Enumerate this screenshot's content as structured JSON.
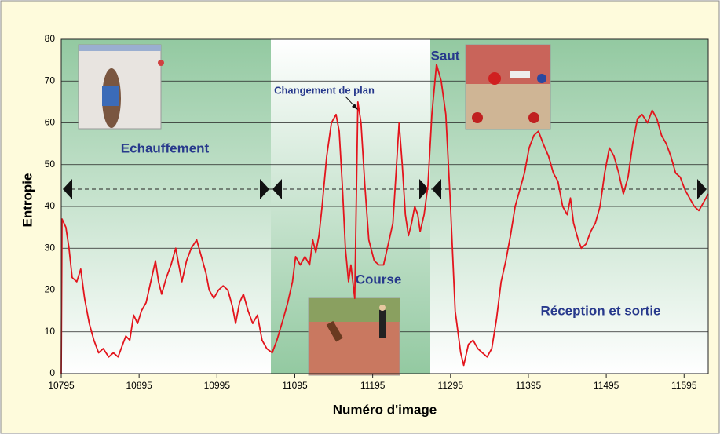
{
  "chart_data": {
    "type": "line",
    "xlabel": "Numéro d'image",
    "ylabel": "Entropie",
    "annotations": [
      "Echauffement",
      "Saut",
      "Changement de plan",
      "Course",
      "Réception et sortie"
    ],
    "xlim": [
      10795,
      11626
    ],
    "ylim": [
      0,
      80
    ],
    "xticks": [
      10795,
      10895,
      10995,
      11095,
      11195,
      11295,
      11395,
      11495,
      11595
    ],
    "yticks": [
      0,
      10,
      20,
      30,
      40,
      50,
      60,
      70,
      80
    ],
    "grid": true,
    "series": [
      {
        "color": "#e3141c",
        "x": [
          10795,
          10796,
          10801,
          10805,
          10809,
          10815,
          10820,
          10825,
          10831,
          10837,
          10843,
          10849,
          10856,
          10862,
          10868,
          10874,
          10878,
          10883,
          10888,
          10893,
          10898,
          10904,
          10910,
          10916,
          10920,
          10924,
          10930,
          10936,
          10942,
          10946,
          10950,
          10956,
          10962,
          10969,
          10975,
          10981,
          10985,
          10991,
          10997,
          11003,
          11009,
          11015,
          11019,
          11024,
          11029,
          11035,
          11041,
          11047,
          11053,
          11059,
          11066,
          11072,
          11080,
          11086,
          11092,
          11096,
          11102,
          11108,
          11114,
          11118,
          11122,
          11126,
          11130,
          11136,
          11142,
          11148,
          11152,
          11156,
          11160,
          11164,
          11167,
          11172,
          11176,
          11180,
          11185,
          11190,
          11197,
          11203,
          11209,
          11215,
          11221,
          11225,
          11229,
          11233,
          11237,
          11241,
          11245,
          11249,
          11253,
          11256,
          11261,
          11266,
          11271,
          11277,
          11283,
          11289,
          11295,
          11301,
          11308,
          11312,
          11318,
          11324,
          11330,
          11336,
          11342,
          11348,
          11354,
          11360,
          11366,
          11372,
          11378,
          11384,
          11390,
          11396,
          11402,
          11408,
          11414,
          11421,
          11427,
          11433,
          11439,
          11445,
          11449,
          11453,
          11459,
          11463,
          11469,
          11475,
          11481,
          11487,
          11493,
          11499,
          11505,
          11511,
          11517,
          11523,
          11529,
          11535,
          11541,
          11548,
          11554,
          11560,
          11566,
          11572,
          11578,
          11584,
          11590,
          11596,
          11602,
          11608,
          11614,
          11620,
          11626
        ],
        "values": [
          0,
          37,
          35,
          30,
          23,
          22,
          25,
          18,
          12,
          8,
          5,
          6,
          4,
          5,
          4,
          7,
          9,
          8,
          14,
          12,
          15,
          17,
          22,
          27,
          22,
          19,
          23,
          26,
          30,
          26,
          22,
          27,
          30,
          32,
          28,
          24,
          20,
          18,
          20,
          21,
          20,
          16,
          12,
          17,
          19,
          15,
          12,
          14,
          8,
          6,
          5,
          8,
          13,
          17,
          22,
          28,
          26,
          28,
          26,
          32,
          29,
          33,
          40,
          52,
          60,
          62,
          58,
          45,
          30,
          22,
          26,
          18,
          65,
          60,
          45,
          32,
          27,
          26,
          26,
          31,
          36,
          48,
          60,
          50,
          38,
          33,
          36,
          40,
          38,
          34,
          38,
          45,
          62,
          74,
          70,
          62,
          40,
          15,
          5,
          2,
          7,
          8,
          6,
          5,
          4,
          6,
          13,
          22,
          27,
          33,
          40,
          44,
          48,
          54,
          57,
          58,
          55,
          52,
          48,
          46,
          40,
          38,
          42,
          36,
          32,
          30,
          31,
          34,
          36,
          40,
          48,
          54,
          52,
          48,
          43,
          47,
          55,
          61,
          62,
          60,
          63,
          61,
          57,
          55,
          52,
          48,
          47,
          44,
          42,
          40,
          39,
          41,
          43
        ]
      }
    ]
  }
}
